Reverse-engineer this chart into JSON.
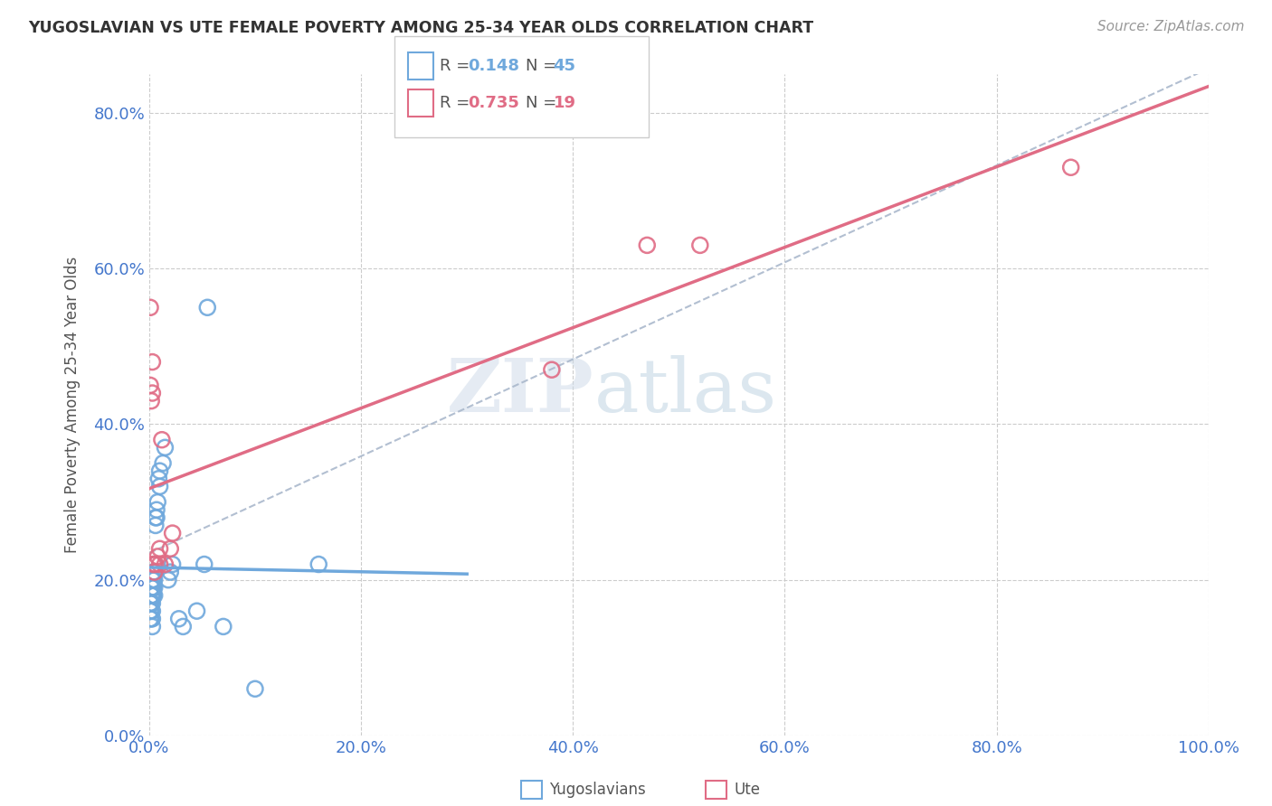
{
  "title": "YUGOSLAVIAN VS UTE FEMALE POVERTY AMONG 25-34 YEAR OLDS CORRELATION CHART",
  "source": "Source: ZipAtlas.com",
  "ylabel": "Female Poverty Among 25-34 Year Olds",
  "xlim": [
    0.0,
    1.0
  ],
  "ylim": [
    0.0,
    0.85
  ],
  "x_ticks": [
    0.0,
    0.2,
    0.4,
    0.6,
    0.8,
    1.0
  ],
  "x_tick_labels": [
    "0.0%",
    "20.0%",
    "40.0%",
    "60.0%",
    "80.0%",
    "100.0%"
  ],
  "y_ticks": [
    0.0,
    0.2,
    0.4,
    0.6,
    0.8
  ],
  "y_tick_labels": [
    "0.0%",
    "20.0%",
    "40.0%",
    "60.0%",
    "80.0%"
  ],
  "yugoslavian_color": "#6fa8dc",
  "ute_color": "#e06c85",
  "legend_r_yugo": "0.148",
  "legend_n_yugo": "45",
  "legend_r_ute": "0.735",
  "legend_n_ute": "19",
  "yugo_x": [
    0.001,
    0.001,
    0.001,
    0.002,
    0.002,
    0.002,
    0.002,
    0.002,
    0.003,
    0.003,
    0.003,
    0.003,
    0.003,
    0.003,
    0.003,
    0.004,
    0.004,
    0.004,
    0.004,
    0.005,
    0.005,
    0.005,
    0.005,
    0.005,
    0.006,
    0.006,
    0.007,
    0.007,
    0.008,
    0.009,
    0.01,
    0.01,
    0.013,
    0.015,
    0.018,
    0.02,
    0.022,
    0.028,
    0.032,
    0.045,
    0.052,
    0.055,
    0.07,
    0.1,
    0.16
  ],
  "yugo_y": [
    0.17,
    0.16,
    0.15,
    0.19,
    0.18,
    0.17,
    0.16,
    0.15,
    0.2,
    0.19,
    0.18,
    0.17,
    0.16,
    0.15,
    0.14,
    0.21,
    0.2,
    0.19,
    0.18,
    0.22,
    0.21,
    0.2,
    0.19,
    0.18,
    0.28,
    0.27,
    0.29,
    0.28,
    0.3,
    0.33,
    0.32,
    0.34,
    0.35,
    0.37,
    0.2,
    0.21,
    0.22,
    0.15,
    0.14,
    0.16,
    0.22,
    0.55,
    0.14,
    0.06,
    0.22
  ],
  "ute_x": [
    0.001,
    0.001,
    0.002,
    0.003,
    0.003,
    0.004,
    0.005,
    0.006,
    0.008,
    0.01,
    0.01,
    0.012,
    0.015,
    0.02,
    0.022,
    0.38,
    0.47,
    0.52,
    0.87
  ],
  "ute_y": [
    0.55,
    0.45,
    0.43,
    0.48,
    0.44,
    0.22,
    0.21,
    0.22,
    0.23,
    0.24,
    0.22,
    0.38,
    0.22,
    0.24,
    0.26,
    0.47,
    0.63,
    0.63,
    0.73
  ],
  "background_color": "#ffffff",
  "grid_color": "#cccccc",
  "tick_color": "#4477cc",
  "watermark_text": "ZIP",
  "watermark_text2": "atlas"
}
